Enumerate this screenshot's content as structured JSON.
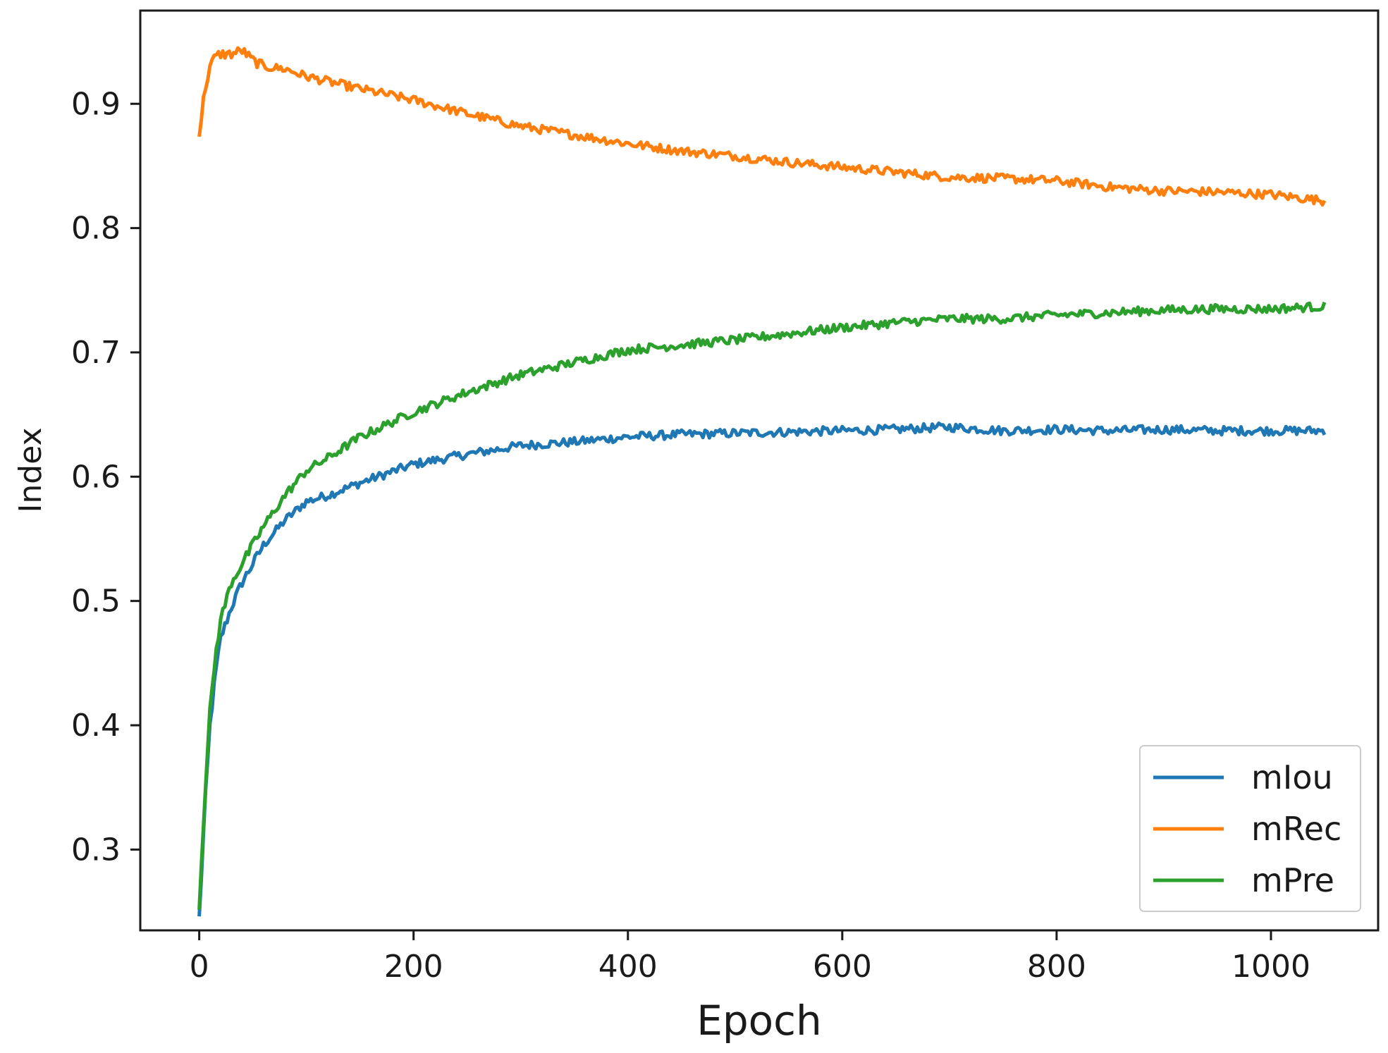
{
  "chart_data": {
    "type": "line",
    "xlabel": "Epoch",
    "ylabel": "Index",
    "xlim": [
      -55,
      1100
    ],
    "ylim": [
      0.235,
      0.975
    ],
    "xticks": [
      0,
      200,
      400,
      600,
      800,
      1000
    ],
    "xtick_labels": [
      "0",
      "200",
      "400",
      "600",
      "800",
      "1000"
    ],
    "yticks": [
      0.3,
      0.4,
      0.5,
      0.6,
      0.7,
      0.8,
      0.9
    ],
    "ytick_labels": [
      "0.3",
      "0.4",
      "0.5",
      "0.6",
      "0.7",
      "0.8",
      "0.9"
    ],
    "grid": false,
    "legend_position": "lower-right",
    "series": [
      {
        "name": "mIou",
        "color": "#1f77b4",
        "x": [
          0,
          5,
          10,
          15,
          20,
          30,
          40,
          50,
          60,
          80,
          100,
          120,
          150,
          200,
          250,
          300,
          350,
          400,
          450,
          500,
          550,
          600,
          650,
          700,
          750,
          800,
          850,
          900,
          950,
          1000,
          1050
        ],
        "y": [
          0.245,
          0.33,
          0.4,
          0.44,
          0.47,
          0.495,
          0.515,
          0.53,
          0.545,
          0.565,
          0.58,
          0.585,
          0.595,
          0.61,
          0.618,
          0.625,
          0.628,
          0.632,
          0.634,
          0.635,
          0.636,
          0.637,
          0.638,
          0.64,
          0.637,
          0.638,
          0.637,
          0.638,
          0.637,
          0.637,
          0.637
        ]
      },
      {
        "name": "mRec",
        "color": "#ff7f0e",
        "x": [
          0,
          5,
          10,
          15,
          20,
          30,
          40,
          50,
          60,
          80,
          100,
          150,
          200,
          250,
          300,
          350,
          400,
          450,
          500,
          550,
          600,
          650,
          700,
          750,
          800,
          850,
          900,
          950,
          1000,
          1050
        ],
        "y": [
          0.875,
          0.91,
          0.93,
          0.938,
          0.94,
          0.94,
          0.943,
          0.935,
          0.93,
          0.928,
          0.922,
          0.912,
          0.903,
          0.892,
          0.882,
          0.875,
          0.868,
          0.862,
          0.858,
          0.853,
          0.849,
          0.845,
          0.841,
          0.84,
          0.838,
          0.833,
          0.83,
          0.829,
          0.827,
          0.822
        ]
      },
      {
        "name": "mPre",
        "color": "#2ca02c",
        "x": [
          0,
          5,
          10,
          15,
          20,
          30,
          40,
          50,
          60,
          80,
          100,
          120,
          150,
          200,
          250,
          300,
          350,
          400,
          450,
          500,
          550,
          600,
          650,
          700,
          750,
          800,
          850,
          900,
          950,
          1000,
          1050
        ],
        "y": [
          0.255,
          0.34,
          0.41,
          0.455,
          0.485,
          0.515,
          0.53,
          0.545,
          0.56,
          0.585,
          0.605,
          0.615,
          0.632,
          0.652,
          0.668,
          0.682,
          0.692,
          0.702,
          0.706,
          0.71,
          0.715,
          0.72,
          0.724,
          0.727,
          0.727,
          0.73,
          0.732,
          0.734,
          0.735,
          0.735,
          0.737
        ]
      }
    ]
  }
}
